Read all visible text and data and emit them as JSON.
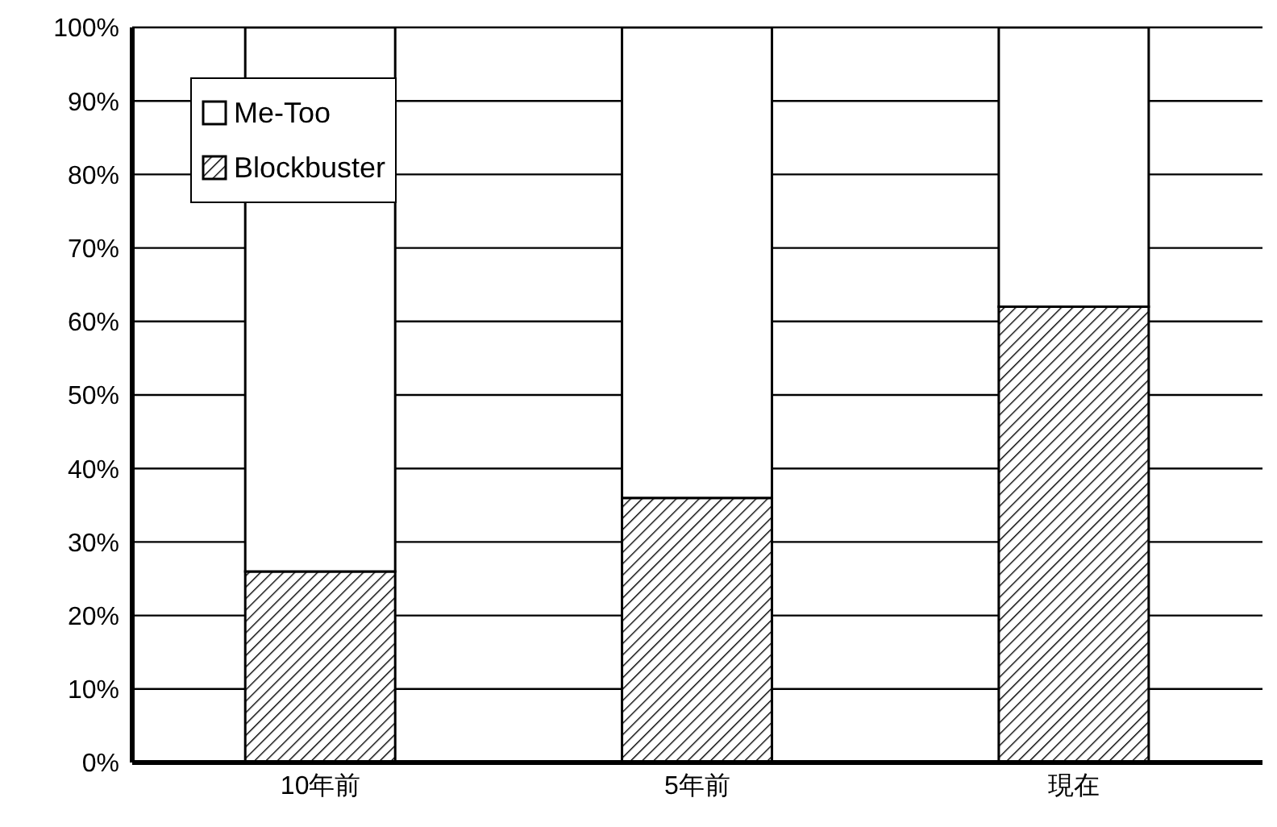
{
  "chart_data": {
    "type": "bar",
    "stacked": true,
    "categories": [
      "10年前",
      "5年前",
      "現在"
    ],
    "series": [
      {
        "name": "Blockbuster",
        "color": "#000000",
        "values": [
          26,
          36,
          62
        ]
      },
      {
        "name": "Me-Too",
        "color": "#ffffff",
        "values": [
          74,
          64,
          38
        ]
      }
    ],
    "ylim": [
      0,
      100
    ],
    "yticks": [
      {
        "value": 0,
        "label": "0%"
      },
      {
        "value": 10,
        "label": "10%"
      },
      {
        "value": 20,
        "label": "20%"
      },
      {
        "value": 30,
        "label": "30%"
      },
      {
        "value": 40,
        "label": "40%"
      },
      {
        "value": 50,
        "label": "50%"
      },
      {
        "value": 60,
        "label": "60%"
      },
      {
        "value": 70,
        "label": "70%"
      },
      {
        "value": 80,
        "label": "80%"
      },
      {
        "value": 90,
        "label": "90%"
      },
      {
        "value": 100,
        "label": "100%"
      }
    ],
    "grid": "y",
    "legend": "top left"
  }
}
